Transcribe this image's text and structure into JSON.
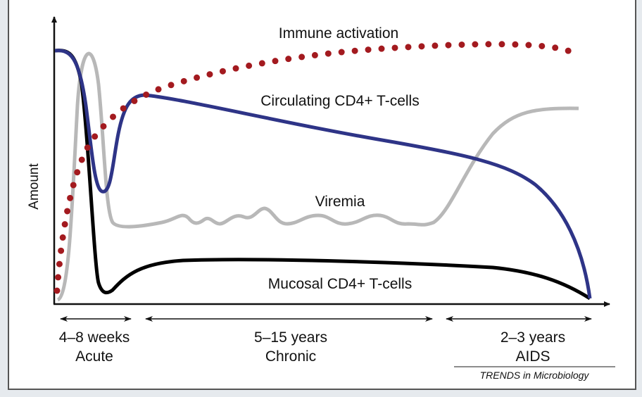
{
  "axis": {
    "y_label": "Amount"
  },
  "curves": [
    {
      "label": "Immune activation",
      "color": "#a31a1f",
      "style": "dotted"
    },
    {
      "label": "Circulating CD4+ T-cells",
      "color": "#2e3487",
      "style": "solid"
    },
    {
      "label": "Viremia",
      "color": "#b8b8b8",
      "style": "solid"
    },
    {
      "label": "Mucosal CD4+ T-cells",
      "color": "#000000",
      "style": "solid"
    }
  ],
  "phases": [
    {
      "duration": "4–8 weeks",
      "name": "Acute"
    },
    {
      "duration": "5–15 years",
      "name": "Chronic"
    },
    {
      "duration": "2–3 years",
      "name": "AIDS"
    }
  ],
  "source": "TRENDS in Microbiology"
}
